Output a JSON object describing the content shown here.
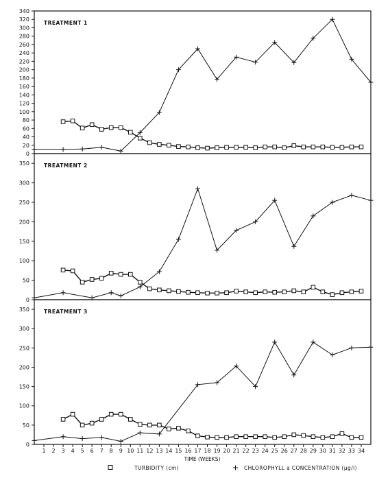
{
  "chart_data": [
    {
      "type": "line",
      "title": "TREATMENT 1",
      "ylim": [
        0,
        340
      ],
      "yticks": [
        0,
        20,
        40,
        60,
        80,
        100,
        120,
        140,
        160,
        180,
        200,
        220,
        240,
        260,
        280,
        300,
        320,
        340
      ],
      "series": [
        {
          "name": "TURBIDITY (cm)",
          "marker": "square",
          "x": [
            3,
            4,
            5,
            6,
            7,
            8,
            9,
            10,
            11,
            12,
            13,
            14,
            15,
            16,
            17,
            18,
            19,
            20,
            21,
            22,
            23,
            24,
            25,
            26,
            27,
            28,
            29,
            30,
            31,
            32,
            33,
            34
          ],
          "values": [
            76,
            78,
            61,
            69,
            58,
            62,
            62,
            51,
            37,
            26,
            22,
            20,
            17,
            16,
            14,
            13,
            14,
            15,
            15,
            15,
            14,
            16,
            16,
            14,
            19,
            16,
            16,
            16,
            15,
            15,
            16,
            16
          ]
        },
        {
          "name": "CHLOROPHYLL a CONCENTRATION (µg/l)",
          "marker": "plus",
          "x": [
            0,
            3,
            5,
            7,
            9,
            11,
            13,
            15,
            17,
            19,
            21,
            23,
            25,
            27,
            29,
            31,
            33,
            35
          ],
          "values": [
            10,
            10,
            11,
            15,
            6,
            50,
            98,
            200,
            250,
            177,
            230,
            218,
            265,
            217,
            275,
            320,
            225,
            170
          ]
        }
      ]
    },
    {
      "type": "line",
      "title": "TREATMENT 2",
      "ylim": [
        0,
        375
      ],
      "yticks": [
        0,
        50,
        100,
        150,
        200,
        250,
        300,
        350
      ],
      "series": [
        {
          "name": "TURBIDITY (cm)",
          "marker": "square",
          "x": [
            3,
            4,
            5,
            6,
            7,
            8,
            9,
            10,
            11,
            12,
            13,
            14,
            15,
            16,
            17,
            18,
            19,
            20,
            21,
            22,
            23,
            24,
            25,
            26,
            27,
            28,
            29,
            30,
            31,
            32,
            33,
            34
          ],
          "values": [
            76,
            74,
            45,
            52,
            55,
            68,
            65,
            65,
            45,
            28,
            25,
            23,
            21,
            19,
            18,
            17,
            17,
            18,
            22,
            20,
            18,
            20,
            19,
            20,
            23,
            20,
            32,
            20,
            13,
            18,
            20,
            22
          ]
        },
        {
          "name": "CHLOROPHYLL a CONCENTRATION (µg/l)",
          "marker": "plus",
          "x": [
            0,
            3,
            6,
            8,
            9,
            11,
            13,
            15,
            17,
            19,
            21,
            23,
            25,
            27,
            29,
            31,
            33,
            35
          ],
          "values": [
            5,
            18,
            5,
            18,
            10,
            33,
            72,
            155,
            285,
            127,
            178,
            200,
            255,
            137,
            215,
            250,
            268,
            255
          ]
        }
      ]
    },
    {
      "type": "line",
      "title": "TREATMENT 3",
      "ylim": [
        0,
        375
      ],
      "yticks": [
        0,
        50,
        100,
        150,
        200,
        250,
        300,
        350
      ],
      "xlabel": "TIME (WEEKS)",
      "xticks": [
        1,
        2,
        3,
        4,
        5,
        6,
        7,
        8,
        9,
        10,
        11,
        12,
        13,
        14,
        15,
        16,
        17,
        18,
        19,
        20,
        21,
        22,
        23,
        24,
        25,
        26,
        27,
        28,
        29,
        30,
        31,
        32,
        33,
        34
      ],
      "series": [
        {
          "name": "TURBIDITY (cm)",
          "marker": "square",
          "x": [
            3,
            4,
            5,
            6,
            7,
            8,
            9,
            10,
            11,
            12,
            13,
            14,
            15,
            16,
            17,
            18,
            19,
            20,
            21,
            22,
            23,
            24,
            25,
            26,
            27,
            28,
            29,
            30,
            31,
            32,
            33,
            34
          ],
          "values": [
            65,
            78,
            50,
            55,
            65,
            78,
            78,
            65,
            52,
            50,
            50,
            40,
            42,
            35,
            22,
            19,
            18,
            18,
            20,
            20,
            20,
            20,
            18,
            20,
            25,
            23,
            20,
            18,
            20,
            28,
            18,
            18
          ]
        },
        {
          "name": "CHLOROPHYLL a CONCENTRATION (µg/l)",
          "marker": "plus",
          "x": [
            0,
            3,
            5,
            7,
            9,
            11,
            13,
            17,
            19,
            21,
            23,
            25,
            27,
            29,
            31,
            33,
            35
          ],
          "values": [
            10,
            20,
            15,
            18,
            8,
            30,
            27,
            155,
            160,
            203,
            150,
            265,
            180,
            265,
            232,
            250,
            252
          ]
        }
      ]
    }
  ],
  "legend": {
    "turbidity": "TURBIDITY (cm)",
    "chlorophyll": "CHLOROPHYLL a CONCENTRATION (µg/l)"
  }
}
